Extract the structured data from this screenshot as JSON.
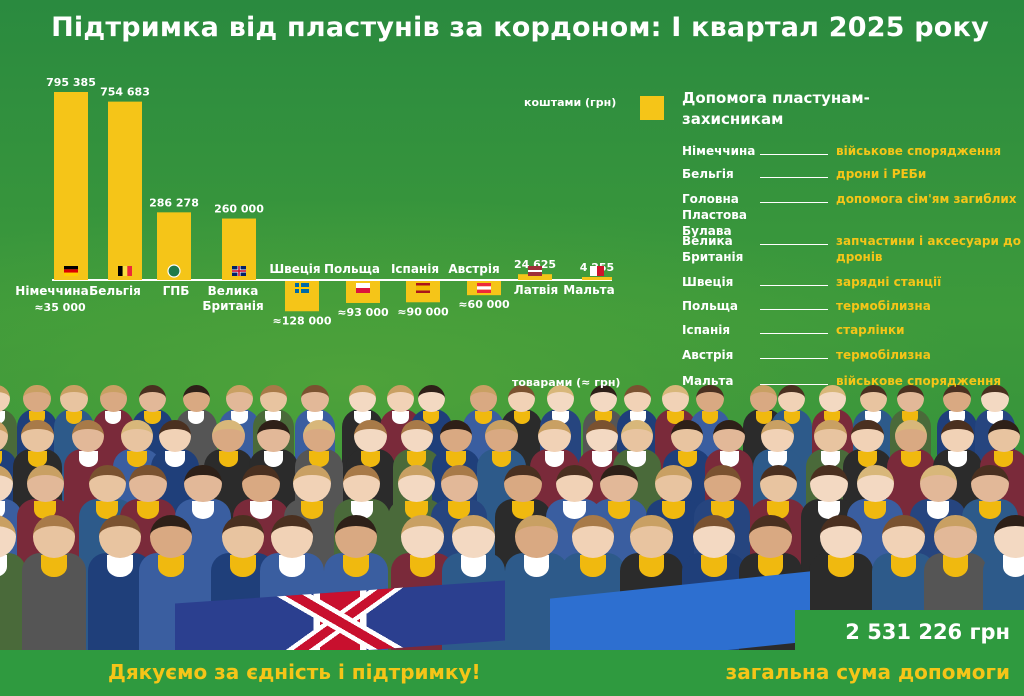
{
  "title": "Підтримка від пластунів за кордоном: І квартал 2025 року",
  "colors": {
    "bar": "#f5c518",
    "text": "#ffffff",
    "accent": "#f5c518",
    "background": "#2f8d3c"
  },
  "chart_data": {
    "type": "bar",
    "title": "Підтримка від пластунів за кордоном: І квартал 2025 року",
    "ylabel_top": "коштами (грн)",
    "ylabel_bottom": "товарами (≈ грн)",
    "money_series": [
      {
        "category": "Німеччина",
        "value": 795385,
        "label": "795 385",
        "flag": "de"
      },
      {
        "category": "Бельгія",
        "value": 754683,
        "label": "754 683",
        "flag": "be"
      },
      {
        "category": "ГПБ",
        "value": 286278,
        "label": "286 278",
        "flag": "gpb"
      },
      {
        "category": "Велика Британія",
        "value": 260000,
        "label": "260 000",
        "flag": "gb"
      },
      {
        "category": "Латвія",
        "value": 24625,
        "label": "24 625",
        "flag": "lv"
      },
      {
        "category": "Мальта",
        "value": 4255,
        "label": "4 255",
        "flag": "mt"
      }
    ],
    "goods_series": [
      {
        "category": "Німеччина",
        "value": 35000,
        "label": "≈35 000"
      },
      {
        "category": "Швеція",
        "value": 128000,
        "label": "≈128 000",
        "flag": "se"
      },
      {
        "category": "Польща",
        "value": 93000,
        "label": "≈93 000",
        "flag": "pl"
      },
      {
        "category": "Іспанія",
        "value": 90000,
        "label": "≈90 000",
        "flag": "es"
      },
      {
        "category": "Австрія",
        "value": 60000,
        "label": "≈60 000",
        "flag": "at"
      }
    ],
    "category_labels": [
      {
        "key": "de",
        "text_lines": [
          "Німеччина"
        ]
      },
      {
        "key": "be",
        "text_lines": [
          "Бельгія"
        ]
      },
      {
        "key": "gpb",
        "text_lines": [
          "ГПБ"
        ]
      },
      {
        "key": "gb",
        "text_lines": [
          "Велика",
          "Британія"
        ]
      },
      {
        "key": "se",
        "text_lines": [
          "Швеція"
        ]
      },
      {
        "key": "pl",
        "text_lines": [
          "Польща"
        ]
      },
      {
        "key": "es",
        "text_lines": [
          "Іспанія"
        ]
      },
      {
        "key": "at",
        "text_lines": [
          "Австрія"
        ]
      },
      {
        "key": "lv",
        "text_lines": [
          "Латвія"
        ]
      },
      {
        "key": "mt",
        "text_lines": [
          "Мальта"
        ]
      }
    ]
  },
  "legend": {
    "title": "Допомога пластунам-захисникам",
    "rows": [
      {
        "country": "Німеччина",
        "help": "військове спорядження"
      },
      {
        "country": "Бельгія",
        "help": "дрони і РЕБи"
      },
      {
        "country": "Головна Пластова Булава",
        "help": "допомога сім'ям загиблих"
      },
      {
        "country": "Велика Британія",
        "help": "запчастини і аксесуари до дронів"
      },
      {
        "country": "Швеція",
        "help": "зарядні станції"
      },
      {
        "country": "Польща",
        "help": "термобілизна"
      },
      {
        "country": "Іспанія",
        "help": "старлінки"
      },
      {
        "country": "Австрія",
        "help": "термобілизна"
      },
      {
        "country": "Мальта",
        "help": "військове спорядження"
      }
    ]
  },
  "footer": {
    "thanks": "Дякуємо за єдність і підтримку!",
    "total": "2 531 226 грн",
    "total_caption": "загальна сума допомоги"
  }
}
